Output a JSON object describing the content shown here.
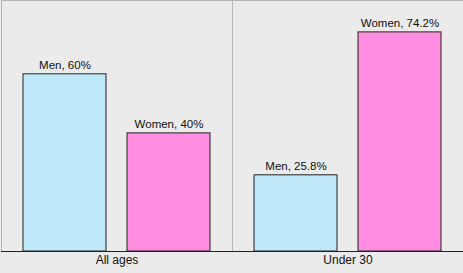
{
  "chart_data": {
    "type": "bar",
    "categories": [
      "All ages",
      "Under 30"
    ],
    "series": [
      {
        "name": "Men",
        "color": "#bfe8f8",
        "values": [
          60,
          25.8
        ],
        "value_labels": [
          "Men, 60%",
          "Men, 25.8%"
        ]
      },
      {
        "name": "Women",
        "color": "#ff8ee0",
        "values": [
          40,
          74.2
        ],
        "value_labels": [
          "Women, 40%",
          "Women, 74.2%"
        ]
      }
    ],
    "ylim": [
      0,
      85
    ],
    "yticks": [],
    "grid": false,
    "data_labels": true,
    "tick_labels": "x"
  }
}
